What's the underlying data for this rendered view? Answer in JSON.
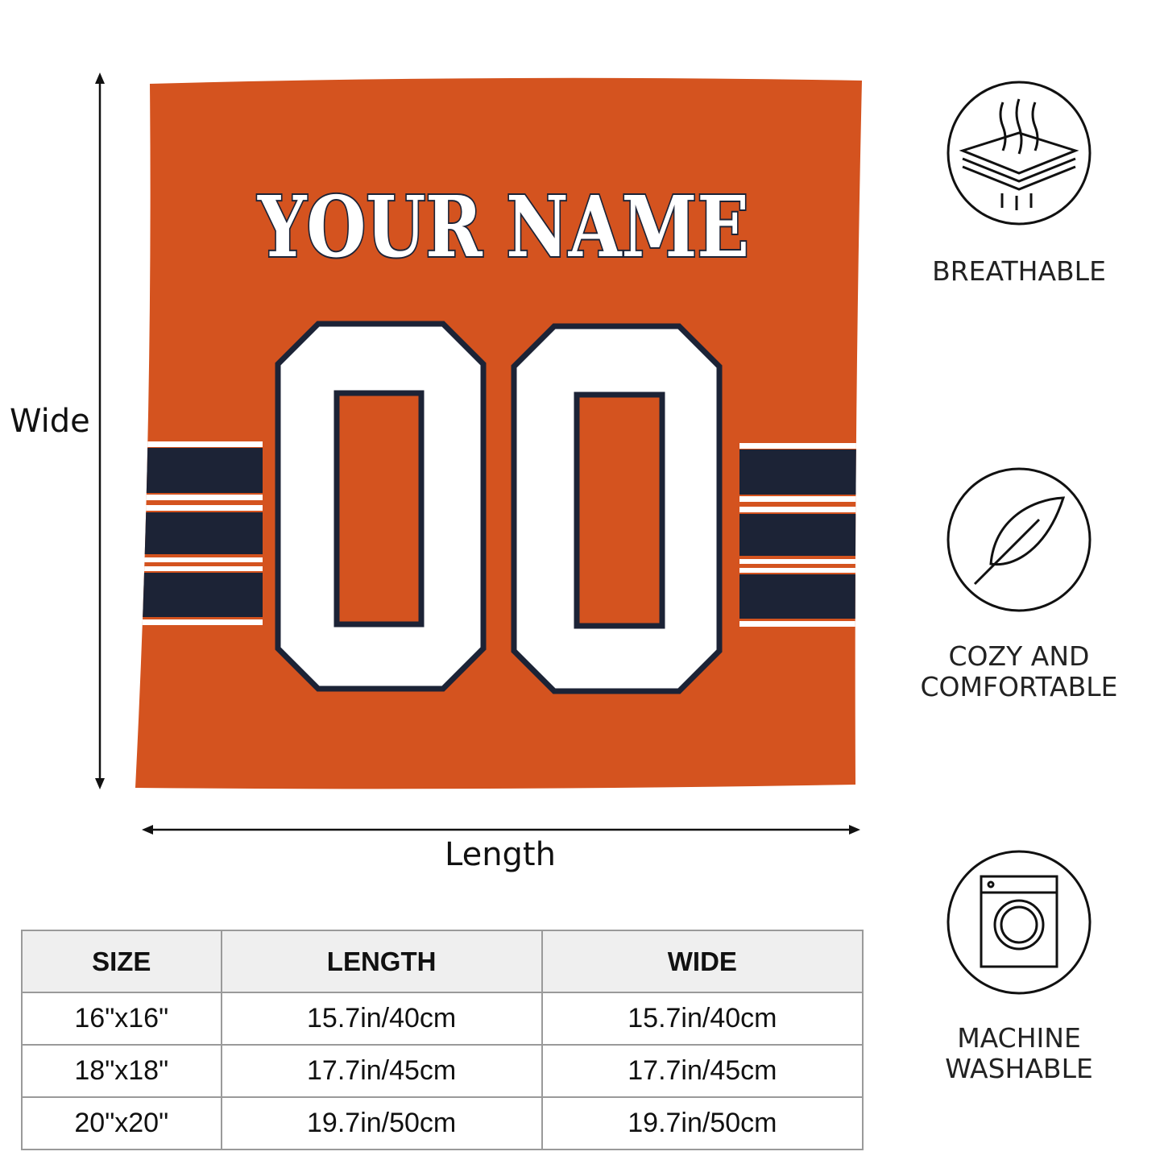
{
  "product": {
    "name_text": "YOUR NAME",
    "number_text": "00",
    "colors": {
      "body": "#d4531f",
      "navy": "#1c2336",
      "white": "#ffffff"
    }
  },
  "dimensions": {
    "wide_label": "Wide",
    "length_label": "Length"
  },
  "features": [
    {
      "icon": "breathable-layers-icon",
      "label_lines": [
        "BREATHABLE"
      ]
    },
    {
      "icon": "feather-icon",
      "label_lines": [
        "COZY AND",
        "COMFORTABLE"
      ]
    },
    {
      "icon": "washing-machine-icon",
      "label_lines": [
        "MACHINE",
        "WASHABLE"
      ]
    }
  ],
  "size_table": {
    "headers": [
      "SIZE",
      "LENGTH",
      "WIDE"
    ],
    "rows": [
      [
        "16\"x16\"",
        "15.7in/40cm",
        "15.7in/40cm"
      ],
      [
        "18\"x18\"",
        "17.7in/45cm",
        "17.7in/45cm"
      ],
      [
        "20\"x20\"",
        "19.7in/50cm",
        "19.7in/50cm"
      ]
    ]
  }
}
